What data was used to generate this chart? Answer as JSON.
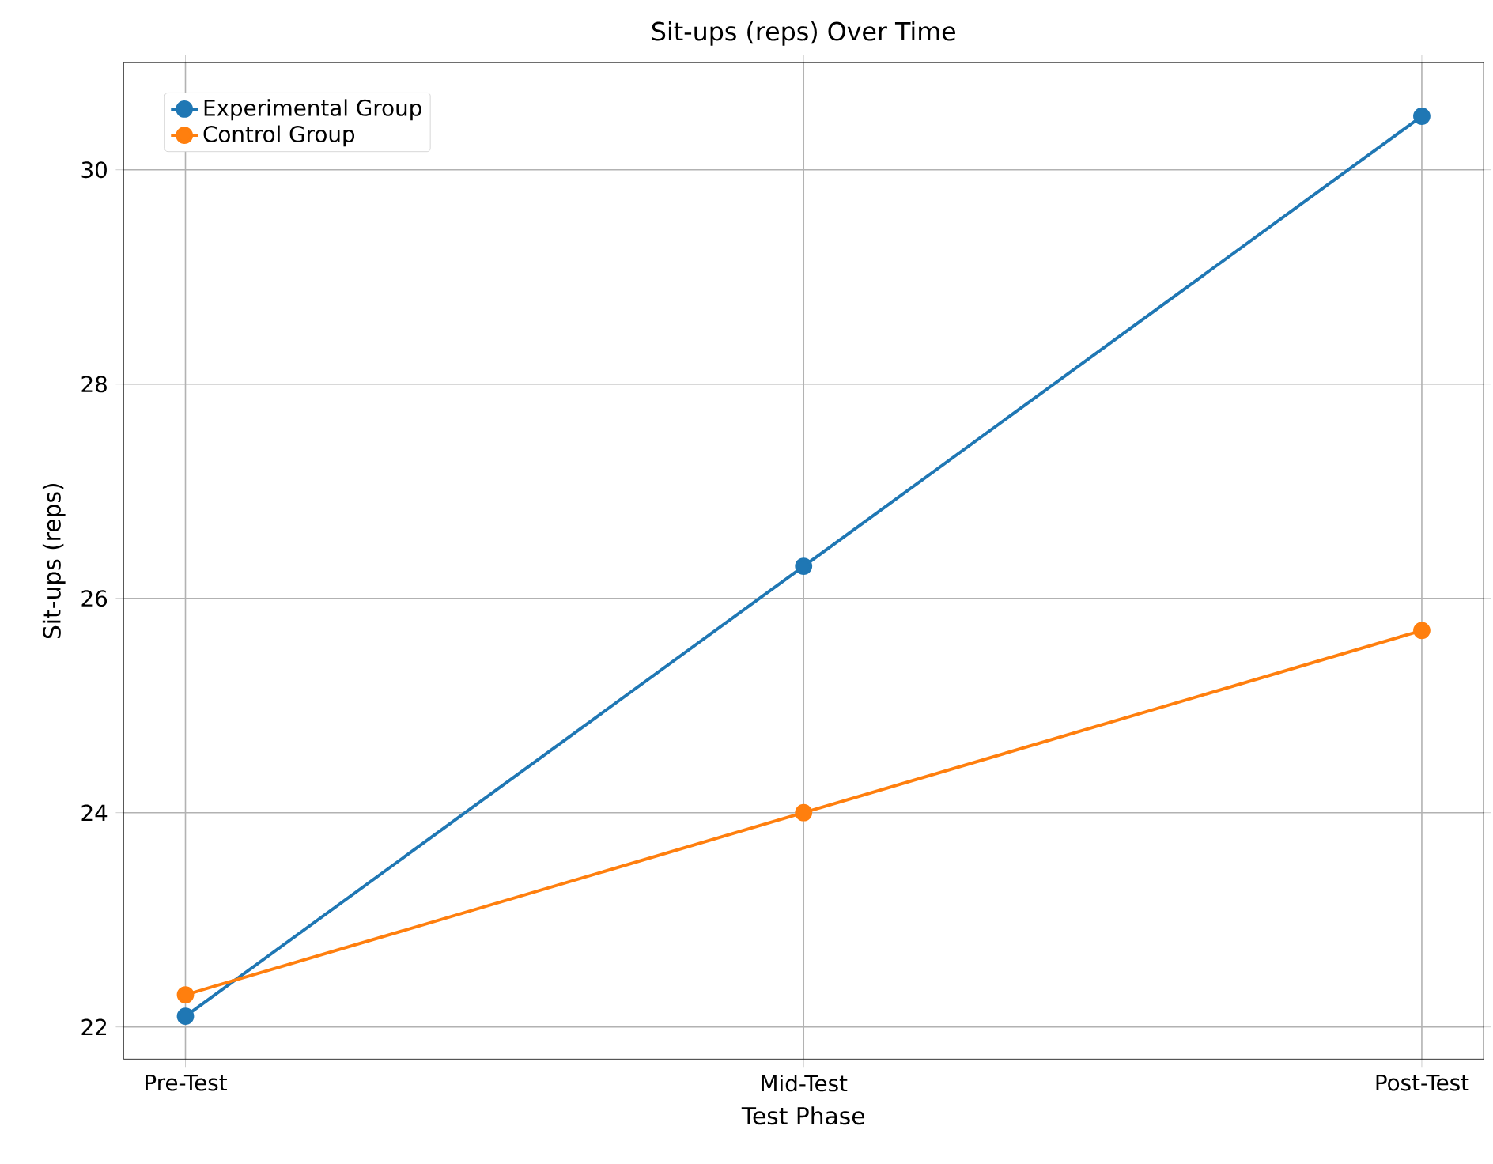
{
  "chart_data": {
    "type": "line",
    "title": "Sit-ups (reps) Over Time",
    "xlabel": "Test Phase",
    "ylabel": "Sit-ups (reps)",
    "categories": [
      "Pre-Test",
      "Mid-Test",
      "Post-Test"
    ],
    "series": [
      {
        "name": "Experimental Group",
        "color": "#1f77b4",
        "values": [
          22.1,
          26.3,
          30.5
        ]
      },
      {
        "name": "Control Group",
        "color": "#ff7f0e",
        "values": [
          22.3,
          24.0,
          25.7
        ]
      }
    ],
    "ylim": [
      21.7,
      31.0
    ],
    "yticks": [
      22,
      24,
      26,
      28,
      30
    ],
    "grid": true,
    "legend": "top left",
    "marker": "circle",
    "line_style": "solid"
  }
}
